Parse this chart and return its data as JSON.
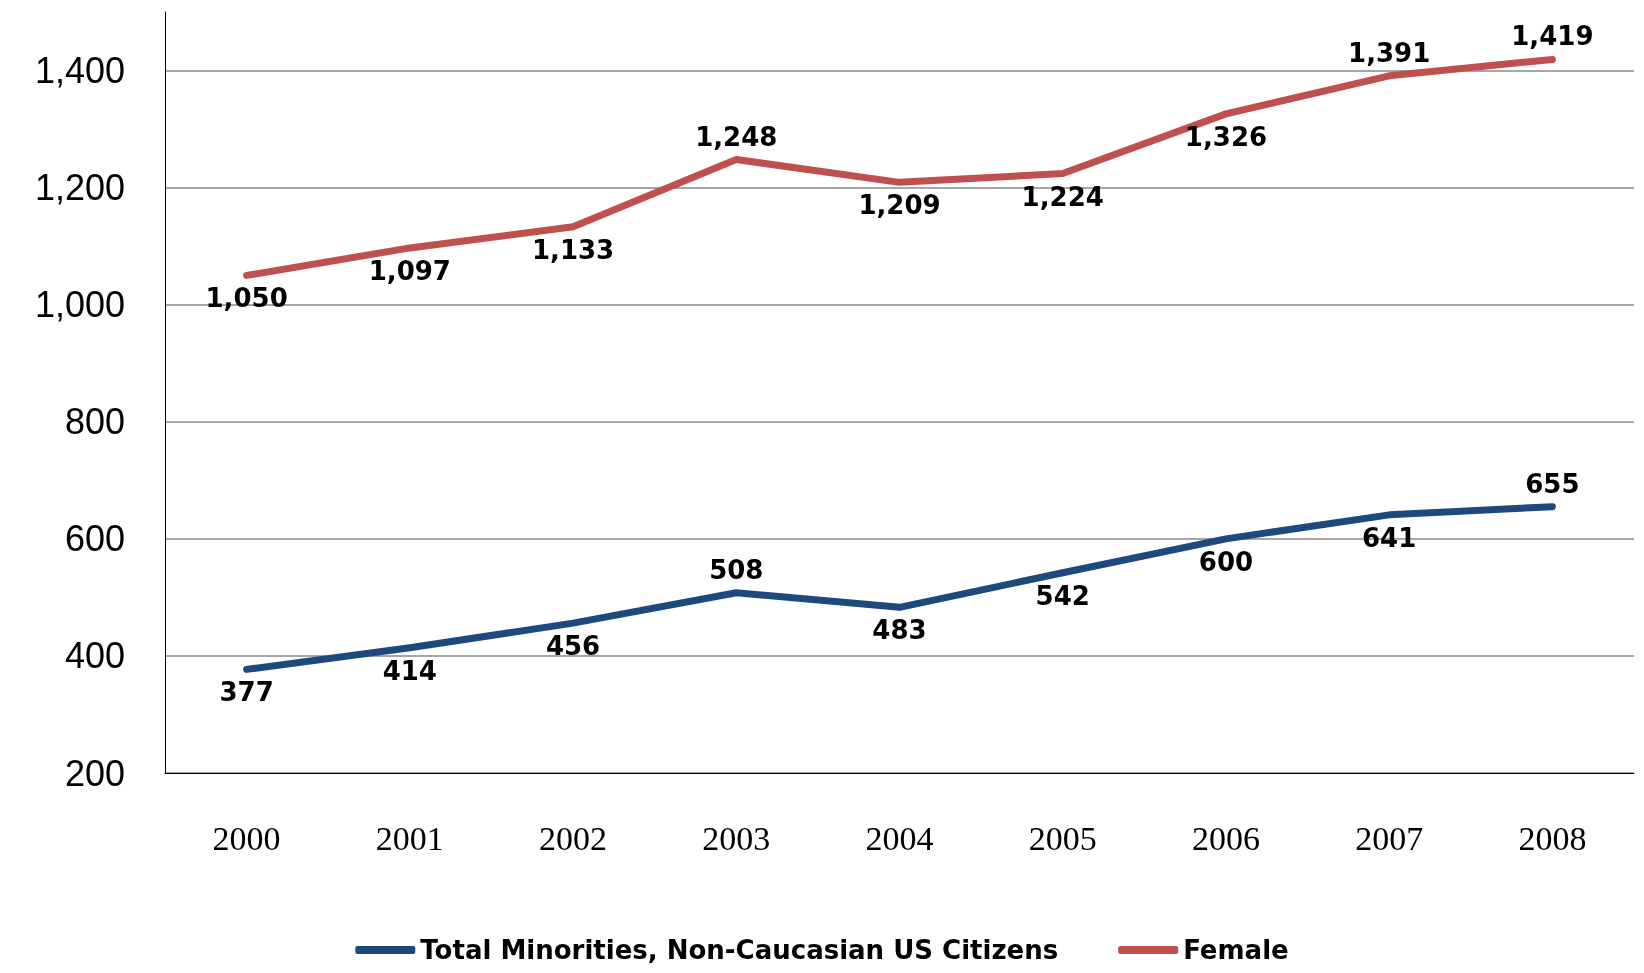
{
  "chart_data": {
    "type": "line",
    "categories": [
      "2000",
      "2001",
      "2002",
      "2003",
      "2004",
      "2005",
      "2006",
      "2007",
      "2008"
    ],
    "series": [
      {
        "name": "Total Minorities, Non-Caucasian US Citizens",
        "color": "#1f497d",
        "values": [
          377,
          414,
          456,
          508,
          483,
          542,
          600,
          641,
          655
        ],
        "value_labels": [
          "377",
          "414",
          "456",
          "508",
          "483",
          "542",
          "600",
          "641",
          "655"
        ]
      },
      {
        "name": "Female",
        "color": "#c0504d",
        "values": [
          1050,
          1097,
          1133,
          1248,
          1209,
          1224,
          1326,
          1391,
          1419
        ],
        "value_labels": [
          "1,050",
          "1,097",
          "1,133",
          "1,248",
          "1,209",
          "1,224",
          "1,326",
          "1,391",
          "1,419"
        ]
      }
    ],
    "ylim": [
      200,
      1500
    ],
    "yticks": [
      200,
      400,
      600,
      800,
      {
        "value": 1000,
        "label": "1,000"
      },
      {
        "value": 1200,
        "label": "1,200"
      },
      {
        "value": 1400,
        "label": "1,400"
      }
    ],
    "grid": "y",
    "legend": "bottom",
    "marker": "none",
    "line_style": "solid"
  }
}
